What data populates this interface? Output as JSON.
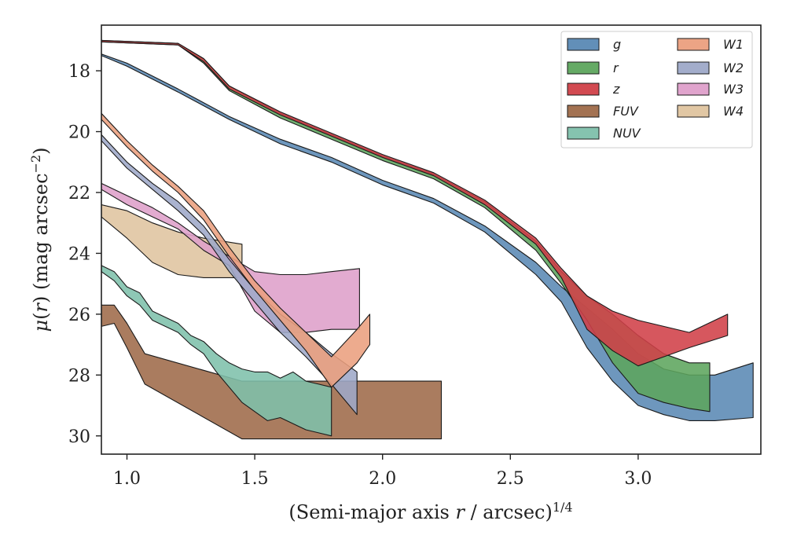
{
  "chart_data": {
    "type": "area",
    "xlabel": "(Semi-major axis r / arcsec)^1/4",
    "ylabel": "μ(r) (mag arcsec^−2)",
    "xlim": [
      0.9,
      3.48
    ],
    "ylim": [
      30.6,
      16.5
    ],
    "y_inverted": true,
    "x_ticks": [
      1.0,
      1.5,
      2.0,
      2.5,
      3.0
    ],
    "x_tick_labels": [
      "1.0",
      "1.5",
      "2.0",
      "2.5",
      "3.0"
    ],
    "y_ticks": [
      18,
      20,
      22,
      24,
      26,
      28,
      30
    ],
    "y_tick_labels": [
      "18",
      "20",
      "22",
      "24",
      "26",
      "28",
      "30"
    ],
    "grid": false,
    "legend_position": "top-right",
    "legend_columns": 2,
    "series": [
      {
        "name": "FUV",
        "color": "#9e6a49",
        "upper": [
          [
            0.9,
            25.7
          ],
          [
            0.95,
            25.7
          ],
          [
            1.0,
            26.3
          ],
          [
            1.07,
            27.3
          ],
          [
            1.45,
            28.2
          ],
          [
            1.8,
            28.2
          ],
          [
            2.23,
            28.2
          ]
        ],
        "lower": [
          [
            0.9,
            26.4
          ],
          [
            0.95,
            26.3
          ],
          [
            1.0,
            27.1
          ],
          [
            1.07,
            28.3
          ],
          [
            1.45,
            30.1
          ],
          [
            1.8,
            30.1
          ],
          [
            2.23,
            30.1
          ]
        ]
      },
      {
        "name": "NUV",
        "color": "#7ec0ab",
        "upper": [
          [
            0.9,
            24.4
          ],
          [
            0.95,
            24.6
          ],
          [
            1.0,
            25.1
          ],
          [
            1.05,
            25.3
          ],
          [
            1.1,
            25.9
          ],
          [
            1.15,
            26.1
          ],
          [
            1.2,
            26.3
          ],
          [
            1.25,
            26.7
          ],
          [
            1.3,
            26.9
          ],
          [
            1.35,
            27.3
          ],
          [
            1.4,
            27.6
          ],
          [
            1.45,
            27.8
          ],
          [
            1.5,
            27.9
          ],
          [
            1.55,
            27.9
          ],
          [
            1.6,
            28.1
          ],
          [
            1.65,
            27.9
          ],
          [
            1.7,
            28.2
          ],
          [
            1.75,
            28.3
          ],
          [
            1.8,
            28.4
          ]
        ],
        "lower": [
          [
            0.9,
            24.6
          ],
          [
            0.95,
            24.9
          ],
          [
            1.0,
            25.4
          ],
          [
            1.05,
            25.7
          ],
          [
            1.1,
            26.2
          ],
          [
            1.15,
            26.4
          ],
          [
            1.2,
            26.6
          ],
          [
            1.25,
            27.0
          ],
          [
            1.3,
            27.3
          ],
          [
            1.35,
            27.9
          ],
          [
            1.4,
            28.4
          ],
          [
            1.45,
            28.9
          ],
          [
            1.5,
            29.2
          ],
          [
            1.55,
            29.5
          ],
          [
            1.6,
            29.4
          ],
          [
            1.65,
            29.6
          ],
          [
            1.7,
            29.8
          ],
          [
            1.75,
            29.9
          ],
          [
            1.8,
            30.0
          ]
        ]
      },
      {
        "name": "W4",
        "color": "#dfc49f",
        "upper": [
          [
            0.9,
            22.4
          ],
          [
            1.0,
            22.6
          ],
          [
            1.1,
            23.0
          ],
          [
            1.2,
            23.3
          ],
          [
            1.3,
            23.5
          ],
          [
            1.45,
            23.7
          ]
        ],
        "lower": [
          [
            0.9,
            22.8
          ],
          [
            1.0,
            23.5
          ],
          [
            1.1,
            24.3
          ],
          [
            1.2,
            24.7
          ],
          [
            1.3,
            24.8
          ],
          [
            1.45,
            24.8
          ]
        ]
      },
      {
        "name": "W3",
        "color": "#de9fca",
        "upper": [
          [
            0.9,
            21.7
          ],
          [
            1.0,
            22.1
          ],
          [
            1.1,
            22.5
          ],
          [
            1.2,
            23.0
          ],
          [
            1.3,
            23.6
          ],
          [
            1.4,
            24.1
          ],
          [
            1.5,
            24.6
          ],
          [
            1.6,
            24.7
          ],
          [
            1.7,
            24.7
          ],
          [
            1.8,
            24.6
          ],
          [
            1.91,
            24.5
          ]
        ],
        "lower": [
          [
            0.9,
            21.9
          ],
          [
            1.0,
            22.4
          ],
          [
            1.1,
            22.8
          ],
          [
            1.2,
            23.2
          ],
          [
            1.3,
            23.9
          ],
          [
            1.4,
            24.4
          ],
          [
            1.5,
            25.9
          ],
          [
            1.6,
            26.6
          ],
          [
            1.7,
            26.6
          ],
          [
            1.8,
            26.5
          ],
          [
            1.91,
            26.5
          ]
        ]
      },
      {
        "name": "W2",
        "color": "#9ea9c8",
        "upper": [
          [
            0.9,
            20.1
          ],
          [
            1.0,
            21.0
          ],
          [
            1.1,
            21.7
          ],
          [
            1.2,
            22.3
          ],
          [
            1.3,
            23.1
          ],
          [
            1.4,
            24.2
          ],
          [
            1.5,
            25.2
          ],
          [
            1.6,
            26.0
          ],
          [
            1.7,
            26.6
          ],
          [
            1.8,
            27.3
          ],
          [
            1.9,
            27.9
          ]
        ],
        "lower": [
          [
            0.9,
            20.3
          ],
          [
            1.0,
            21.2
          ],
          [
            1.1,
            21.9
          ],
          [
            1.2,
            22.6
          ],
          [
            1.3,
            23.4
          ],
          [
            1.4,
            24.6
          ],
          [
            1.5,
            25.6
          ],
          [
            1.6,
            26.6
          ],
          [
            1.7,
            27.4
          ],
          [
            1.8,
            28.3
          ],
          [
            1.9,
            29.3
          ]
        ]
      },
      {
        "name": "W1",
        "color": "#eb9f7e",
        "upper": [
          [
            0.9,
            19.4
          ],
          [
            1.0,
            20.3
          ],
          [
            1.1,
            21.1
          ],
          [
            1.2,
            21.8
          ],
          [
            1.3,
            22.6
          ],
          [
            1.4,
            23.8
          ],
          [
            1.5,
            24.9
          ],
          [
            1.6,
            25.8
          ],
          [
            1.7,
            26.6
          ],
          [
            1.8,
            27.4
          ],
          [
            1.9,
            26.5
          ],
          [
            1.95,
            26.0
          ]
        ],
        "lower": [
          [
            0.9,
            19.6
          ],
          [
            1.0,
            20.5
          ],
          [
            1.1,
            21.3
          ],
          [
            1.2,
            22.0
          ],
          [
            1.3,
            22.9
          ],
          [
            1.4,
            24.1
          ],
          [
            1.5,
            25.2
          ],
          [
            1.6,
            26.2
          ],
          [
            1.7,
            27.2
          ],
          [
            1.8,
            28.4
          ],
          [
            1.9,
            27.6
          ],
          [
            1.95,
            27.0
          ]
        ]
      },
      {
        "name": "g",
        "color": "#5a89b4",
        "upper": [
          [
            0.9,
            17.45
          ],
          [
            1.0,
            17.75
          ],
          [
            1.2,
            18.6
          ],
          [
            1.4,
            19.5
          ],
          [
            1.6,
            20.25
          ],
          [
            1.8,
            20.85
          ],
          [
            2.0,
            21.6
          ],
          [
            2.2,
            22.2
          ],
          [
            2.4,
            23.1
          ],
          [
            2.6,
            24.3
          ],
          [
            2.7,
            25.1
          ],
          [
            2.8,
            25.8
          ],
          [
            2.9,
            26.5
          ],
          [
            3.0,
            27.3
          ],
          [
            3.1,
            27.8
          ],
          [
            3.2,
            28.0
          ],
          [
            3.3,
            28.0
          ],
          [
            3.45,
            27.6
          ]
        ],
        "lower": [
          [
            0.9,
            17.5
          ],
          [
            1.0,
            17.85
          ],
          [
            1.2,
            18.7
          ],
          [
            1.4,
            19.6
          ],
          [
            1.6,
            20.4
          ],
          [
            1.8,
            21.0
          ],
          [
            2.0,
            21.75
          ],
          [
            2.2,
            22.35
          ],
          [
            2.4,
            23.3
          ],
          [
            2.6,
            24.7
          ],
          [
            2.7,
            25.6
          ],
          [
            2.8,
            27.1
          ],
          [
            2.9,
            28.2
          ],
          [
            3.0,
            29.0
          ],
          [
            3.1,
            29.3
          ],
          [
            3.2,
            29.5
          ],
          [
            3.3,
            29.5
          ],
          [
            3.45,
            29.4
          ]
        ]
      },
      {
        "name": "r",
        "color": "#5da55d",
        "upper": [
          [
            0.9,
            17.0
          ],
          [
            1.2,
            17.1
          ],
          [
            1.3,
            17.6
          ],
          [
            1.4,
            18.5
          ],
          [
            1.6,
            19.4
          ],
          [
            1.8,
            20.1
          ],
          [
            2.0,
            20.8
          ],
          [
            2.2,
            21.4
          ],
          [
            2.4,
            22.3
          ],
          [
            2.6,
            23.6
          ],
          [
            2.7,
            24.6
          ],
          [
            2.8,
            25.4
          ],
          [
            2.9,
            26.0
          ],
          [
            3.0,
            26.7
          ],
          [
            3.1,
            27.3
          ],
          [
            3.2,
            27.6
          ],
          [
            3.28,
            27.6
          ]
        ],
        "lower": [
          [
            0.9,
            17.05
          ],
          [
            1.2,
            17.15
          ],
          [
            1.3,
            17.75
          ],
          [
            1.4,
            18.65
          ],
          [
            1.6,
            19.55
          ],
          [
            1.8,
            20.25
          ],
          [
            2.0,
            20.95
          ],
          [
            2.2,
            21.55
          ],
          [
            2.4,
            22.5
          ],
          [
            2.6,
            23.9
          ],
          [
            2.7,
            25.0
          ],
          [
            2.8,
            26.2
          ],
          [
            2.9,
            27.6
          ],
          [
            3.0,
            28.6
          ],
          [
            3.1,
            28.9
          ],
          [
            3.2,
            29.1
          ],
          [
            3.28,
            29.2
          ]
        ]
      },
      {
        "name": "z",
        "color": "#d04048",
        "upper": [
          [
            0.9,
            17.0
          ],
          [
            1.2,
            17.1
          ],
          [
            1.3,
            17.6
          ],
          [
            1.4,
            18.5
          ],
          [
            1.6,
            19.35
          ],
          [
            1.8,
            20.05
          ],
          [
            2.0,
            20.75
          ],
          [
            2.2,
            21.35
          ],
          [
            2.4,
            22.25
          ],
          [
            2.6,
            23.5
          ],
          [
            2.7,
            24.5
          ],
          [
            2.8,
            25.4
          ],
          [
            2.9,
            25.9
          ],
          [
            3.0,
            26.2
          ],
          [
            3.1,
            26.4
          ],
          [
            3.2,
            26.6
          ],
          [
            3.35,
            26.0
          ]
        ],
        "lower": [
          [
            0.9,
            17.05
          ],
          [
            1.2,
            17.15
          ],
          [
            1.3,
            17.7
          ],
          [
            1.4,
            18.6
          ],
          [
            1.6,
            19.45
          ],
          [
            1.8,
            20.15
          ],
          [
            2.0,
            20.85
          ],
          [
            2.2,
            21.45
          ],
          [
            2.4,
            22.4
          ],
          [
            2.6,
            23.7
          ],
          [
            2.7,
            24.8
          ],
          [
            2.8,
            26.5
          ],
          [
            2.9,
            27.2
          ],
          [
            3.0,
            27.7
          ],
          [
            3.1,
            27.4
          ],
          [
            3.2,
            27.1
          ],
          [
            3.35,
            26.7
          ]
        ]
      }
    ]
  },
  "legend": {
    "items": [
      {
        "label": "g",
        "color": "#5a89b4"
      },
      {
        "label": "r",
        "color": "#5da55d"
      },
      {
        "label": "z",
        "color": "#d04048"
      },
      {
        "label": "FUV",
        "color": "#9e6a49"
      },
      {
        "label": "NUV",
        "color": "#7ec0ab"
      },
      {
        "label": "W1",
        "color": "#eb9f7e"
      },
      {
        "label": "W2",
        "color": "#9ea9c8"
      },
      {
        "label": "W3",
        "color": "#de9fca"
      },
      {
        "label": "W4",
        "color": "#dfc49f"
      }
    ]
  }
}
